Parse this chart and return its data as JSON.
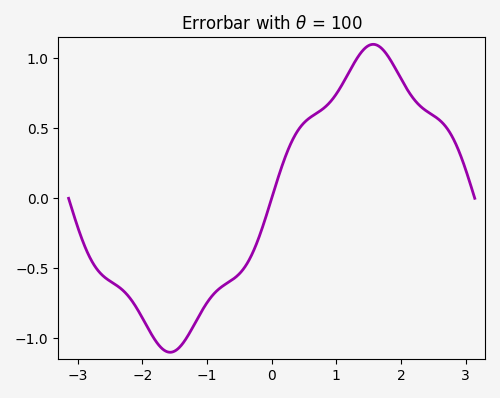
{
  "title": "Errorbar with $\\theta$ = 100",
  "line_color": "#9900aa",
  "line_width": 2.0,
  "xlim": [
    -3.3,
    3.3
  ],
  "ylim": [
    -1.15,
    1.15
  ],
  "xticks": [
    -3,
    -2,
    -1,
    0,
    1,
    2,
    3
  ],
  "yticks": [
    -1.0,
    -0.5,
    0.0,
    0.5,
    1.0
  ],
  "background_color": "#f5f5f5",
  "title_fontsize": 12,
  "sin_base_freq": 1.0,
  "sin_ripple_freq": 5.0,
  "sin_ripple_amp": 0.1
}
